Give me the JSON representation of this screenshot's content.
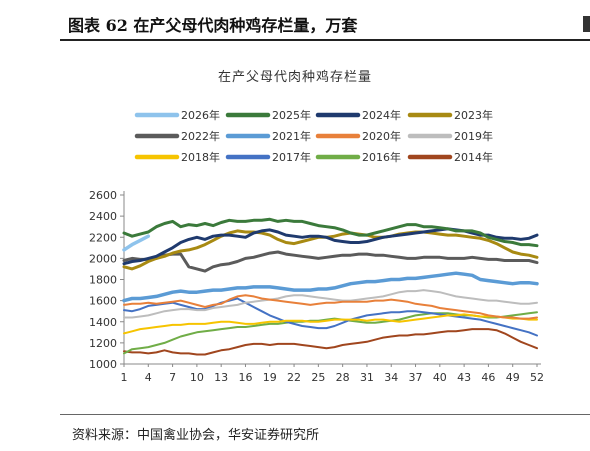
{
  "figure": {
    "title": "图表 62 在产父母代肉种鸡存栏量，万套",
    "source": "资料来源：中国禽业协会，华安证券研究所"
  },
  "chart_data": {
    "type": "line",
    "title": "在产父母代肉种鸡存栏量",
    "xlabel": "",
    "ylabel": "",
    "ylim": [
      1000,
      2600
    ],
    "yticks": [
      1000,
      1200,
      1400,
      1600,
      1800,
      2000,
      2200,
      2400,
      2600
    ],
    "xlim": [
      1,
      52
    ],
    "xticks": [
      1,
      4,
      7,
      10,
      13,
      16,
      19,
      22,
      25,
      28,
      31,
      34,
      37,
      40,
      43,
      46,
      49,
      52
    ],
    "grid": false,
    "legend": "top",
    "series": [
      {
        "name": "2026年",
        "color": "#8EC3EC",
        "width": 3.5,
        "x": [
          1,
          2,
          3,
          4
        ],
        "values": [
          2080,
          2130,
          2170,
          2210
        ]
      },
      {
        "name": "2025年",
        "color": "#3B7A3B",
        "width": 3,
        "x": [
          1,
          2,
          3,
          4,
          5,
          6,
          7,
          8,
          9,
          10,
          11,
          12,
          13,
          14,
          15,
          16,
          17,
          18,
          19,
          20,
          21,
          22,
          23,
          24,
          25,
          26,
          27,
          28,
          29,
          30,
          31,
          32,
          33,
          34,
          35,
          36,
          37,
          38,
          39,
          40,
          41,
          42,
          43,
          44,
          45,
          46,
          47,
          48,
          49,
          50,
          51,
          52
        ],
        "values": [
          2240,
          2210,
          2230,
          2250,
          2300,
          2330,
          2350,
          2300,
          2320,
          2310,
          2330,
          2310,
          2340,
          2360,
          2350,
          2350,
          2360,
          2360,
          2370,
          2350,
          2360,
          2350,
          2350,
          2330,
          2310,
          2300,
          2290,
          2270,
          2240,
          2220,
          2220,
          2240,
          2260,
          2280,
          2300,
          2320,
          2320,
          2300,
          2300,
          2290,
          2280,
          2260,
          2260,
          2260,
          2240,
          2200,
          2180,
          2160,
          2150,
          2130,
          2130,
          2120
        ]
      },
      {
        "name": "2024年",
        "color": "#1F3A6E",
        "width": 3,
        "x": [
          1,
          2,
          3,
          4,
          5,
          6,
          7,
          8,
          9,
          10,
          11,
          12,
          13,
          14,
          15,
          16,
          17,
          18,
          19,
          20,
          21,
          22,
          23,
          24,
          25,
          26,
          27,
          28,
          29,
          30,
          31,
          32,
          33,
          34,
          35,
          36,
          37,
          38,
          39,
          40,
          41,
          42,
          43,
          44,
          45,
          46,
          47,
          48,
          49,
          50,
          51,
          52
        ],
        "values": [
          1950,
          1970,
          1980,
          2000,
          2020,
          2060,
          2100,
          2150,
          2180,
          2200,
          2180,
          2210,
          2220,
          2220,
          2210,
          2200,
          2240,
          2260,
          2270,
          2250,
          2220,
          2210,
          2200,
          2210,
          2210,
          2200,
          2170,
          2160,
          2150,
          2150,
          2160,
          2180,
          2200,
          2210,
          2220,
          2230,
          2240,
          2250,
          2260,
          2270,
          2280,
          2270,
          2260,
          2240,
          2220,
          2220,
          2200,
          2190,
          2190,
          2180,
          2190,
          2220
        ]
      },
      {
        "name": "2023年",
        "color": "#A88A12",
        "width": 3,
        "x": [
          1,
          2,
          3,
          4,
          5,
          6,
          7,
          8,
          9,
          10,
          11,
          12,
          13,
          14,
          15,
          16,
          17,
          18,
          19,
          20,
          21,
          22,
          23,
          24,
          25,
          26,
          27,
          28,
          29,
          30,
          31,
          32,
          33,
          34,
          35,
          36,
          37,
          38,
          39,
          40,
          41,
          42,
          43,
          44,
          45,
          46,
          47,
          48,
          49,
          50,
          51,
          52
        ],
        "values": [
          1920,
          1900,
          1930,
          1970,
          2000,
          2020,
          2050,
          2070,
          2080,
          2100,
          2130,
          2170,
          2210,
          2240,
          2260,
          2250,
          2250,
          2240,
          2220,
          2180,
          2150,
          2140,
          2160,
          2180,
          2200,
          2200,
          2210,
          2230,
          2240,
          2230,
          2220,
          2200,
          2200,
          2210,
          2230,
          2240,
          2250,
          2250,
          2240,
          2230,
          2220,
          2220,
          2210,
          2200,
          2190,
          2170,
          2140,
          2100,
          2060,
          2040,
          2030,
          2010
        ]
      },
      {
        "name": "2022年",
        "color": "#5B5B5B",
        "width": 3,
        "x": [
          1,
          2,
          3,
          4,
          5,
          6,
          7,
          8,
          9,
          10,
          11,
          12,
          13,
          14,
          15,
          16,
          17,
          18,
          19,
          20,
          21,
          22,
          23,
          24,
          25,
          26,
          27,
          28,
          29,
          30,
          31,
          32,
          33,
          34,
          35,
          36,
          37,
          38,
          39,
          40,
          41,
          42,
          43,
          44,
          45,
          46,
          47,
          48,
          49,
          50,
          51,
          52
        ],
        "values": [
          1980,
          2000,
          1990,
          1990,
          2000,
          2030,
          2040,
          2040,
          1920,
          1900,
          1880,
          1920,
          1940,
          1950,
          1970,
          2000,
          2010,
          2030,
          2050,
          2060,
          2040,
          2030,
          2020,
          2010,
          2000,
          2010,
          2020,
          2030,
          2030,
          2040,
          2040,
          2030,
          2030,
          2020,
          2010,
          2000,
          2000,
          2010,
          2010,
          2010,
          2000,
          2000,
          2000,
          2010,
          2000,
          1990,
          1990,
          1980,
          1980,
          1980,
          1980,
          1960
        ]
      },
      {
        "name": "2021年",
        "color": "#5B9BD5",
        "width": 3.5,
        "x": [
          1,
          2,
          3,
          4,
          5,
          6,
          7,
          8,
          9,
          10,
          11,
          12,
          13,
          14,
          15,
          16,
          17,
          18,
          19,
          20,
          21,
          22,
          23,
          24,
          25,
          26,
          27,
          28,
          29,
          30,
          31,
          32,
          33,
          34,
          35,
          36,
          37,
          38,
          39,
          40,
          41,
          42,
          43,
          44,
          45,
          46,
          47,
          48,
          49,
          50,
          51,
          52
        ],
        "values": [
          1600,
          1620,
          1620,
          1630,
          1640,
          1660,
          1680,
          1690,
          1680,
          1680,
          1690,
          1700,
          1700,
          1710,
          1720,
          1720,
          1730,
          1730,
          1730,
          1720,
          1710,
          1700,
          1700,
          1700,
          1710,
          1710,
          1720,
          1740,
          1760,
          1770,
          1780,
          1780,
          1790,
          1800,
          1800,
          1810,
          1810,
          1820,
          1830,
          1840,
          1850,
          1860,
          1850,
          1840,
          1800,
          1790,
          1780,
          1770,
          1760,
          1770,
          1770,
          1760
        ]
      },
      {
        "name": "2020年",
        "color": "#E8803A",
        "width": 2,
        "x": [
          1,
          2,
          3,
          4,
          5,
          6,
          7,
          8,
          9,
          10,
          11,
          12,
          13,
          14,
          15,
          16,
          17,
          18,
          19,
          20,
          21,
          22,
          23,
          24,
          25,
          26,
          27,
          28,
          29,
          30,
          31,
          32,
          33,
          34,
          35,
          36,
          37,
          38,
          39,
          40,
          41,
          42,
          43,
          44,
          45,
          46,
          47,
          48,
          49,
          50,
          51,
          52
        ],
        "values": [
          1560,
          1570,
          1570,
          1580,
          1570,
          1580,
          1590,
          1600,
          1580,
          1560,
          1540,
          1560,
          1570,
          1610,
          1640,
          1650,
          1640,
          1620,
          1610,
          1600,
          1590,
          1580,
          1570,
          1560,
          1570,
          1580,
          1580,
          1590,
          1590,
          1590,
          1590,
          1600,
          1600,
          1610,
          1600,
          1590,
          1570,
          1560,
          1550,
          1530,
          1520,
          1510,
          1500,
          1490,
          1480,
          1460,
          1450,
          1440,
          1440,
          1430,
          1430,
          1440
        ]
      },
      {
        "name": "2019年",
        "color": "#BDBDBD",
        "width": 2,
        "x": [
          1,
          2,
          3,
          4,
          5,
          6,
          7,
          8,
          9,
          10,
          11,
          12,
          13,
          14,
          15,
          16,
          17,
          18,
          19,
          20,
          21,
          22,
          23,
          24,
          25,
          26,
          27,
          28,
          29,
          30,
          31,
          32,
          33,
          34,
          35,
          36,
          37,
          38,
          39,
          40,
          41,
          42,
          43,
          44,
          45,
          46,
          47,
          48,
          49,
          50,
          51,
          52
        ],
        "values": [
          1440,
          1440,
          1450,
          1460,
          1480,
          1500,
          1510,
          1520,
          1520,
          1510,
          1510,
          1530,
          1540,
          1550,
          1560,
          1580,
          1590,
          1600,
          1610,
          1620,
          1640,
          1650,
          1650,
          1640,
          1630,
          1620,
          1610,
          1600,
          1600,
          1610,
          1620,
          1630,
          1640,
          1660,
          1680,
          1690,
          1690,
          1700,
          1690,
          1680,
          1660,
          1640,
          1630,
          1620,
          1610,
          1600,
          1600,
          1590,
          1580,
          1570,
          1570,
          1580
        ]
      },
      {
        "name": "2018年",
        "color": "#F6C400",
        "width": 2,
        "x": [
          1,
          2,
          3,
          4,
          5,
          6,
          7,
          8,
          9,
          10,
          11,
          12,
          13,
          14,
          15,
          16,
          17,
          18,
          19,
          20,
          21,
          22,
          23,
          24,
          25,
          26,
          27,
          28,
          29,
          30,
          31,
          32,
          33,
          34,
          35,
          36,
          37,
          38,
          39,
          40,
          41,
          42,
          43,
          44,
          45,
          46,
          47,
          48,
          49,
          50,
          51,
          52
        ],
        "values": [
          1290,
          1310,
          1330,
          1340,
          1350,
          1360,
          1370,
          1370,
          1380,
          1380,
          1380,
          1390,
          1400,
          1400,
          1390,
          1380,
          1380,
          1390,
          1400,
          1400,
          1410,
          1410,
          1410,
          1400,
          1400,
          1410,
          1420,
          1420,
          1420,
          1420,
          1410,
          1420,
          1420,
          1410,
          1400,
          1410,
          1420,
          1430,
          1440,
          1450,
          1460,
          1460,
          1470,
          1460,
          1450,
          1450,
          1450,
          1440,
          1430,
          1430,
          1420,
          1420
        ]
      },
      {
        "name": "2017年",
        "color": "#4472C4",
        "width": 2,
        "x": [
          1,
          2,
          3,
          4,
          5,
          6,
          7,
          8,
          9,
          10,
          11,
          12,
          13,
          14,
          15,
          16,
          17,
          18,
          19,
          20,
          21,
          22,
          23,
          24,
          25,
          26,
          27,
          28,
          29,
          30,
          31,
          32,
          33,
          34,
          35,
          36,
          37,
          38,
          39,
          40,
          41,
          42,
          43,
          44,
          45,
          46,
          47,
          48,
          49,
          50,
          51,
          52
        ],
        "values": [
          1510,
          1500,
          1520,
          1550,
          1560,
          1570,
          1580,
          1560,
          1540,
          1520,
          1520,
          1550,
          1580,
          1600,
          1620,
          1580,
          1540,
          1500,
          1460,
          1430,
          1400,
          1380,
          1360,
          1350,
          1340,
          1340,
          1360,
          1390,
          1420,
          1440,
          1460,
          1470,
          1480,
          1490,
          1490,
          1500,
          1500,
          1490,
          1480,
          1470,
          1460,
          1450,
          1440,
          1430,
          1420,
          1400,
          1380,
          1360,
          1340,
          1320,
          1300,
          1270
        ]
      },
      {
        "name": "2016年",
        "color": "#70AD47",
        "width": 2,
        "x": [
          1,
          2,
          3,
          4,
          5,
          6,
          7,
          8,
          9,
          10,
          11,
          12,
          13,
          14,
          15,
          16,
          17,
          18,
          19,
          20,
          21,
          22,
          23,
          24,
          25,
          26,
          27,
          28,
          29,
          30,
          31,
          32,
          33,
          34,
          35,
          36,
          37,
          38,
          39,
          40,
          41,
          42,
          43,
          44,
          45,
          46,
          47,
          48,
          49,
          50,
          51,
          52
        ],
        "values": [
          1100,
          1140,
          1150,
          1160,
          1180,
          1200,
          1230,
          1260,
          1280,
          1300,
          1310,
          1320,
          1330,
          1340,
          1350,
          1350,
          1360,
          1370,
          1380,
          1380,
          1390,
          1400,
          1400,
          1410,
          1410,
          1420,
          1430,
          1420,
          1410,
          1400,
          1390,
          1390,
          1400,
          1410,
          1420,
          1440,
          1460,
          1470,
          1480,
          1480,
          1480,
          1470,
          1460,
          1460,
          1450,
          1440,
          1440,
          1450,
          1460,
          1470,
          1480,
          1490
        ]
      },
      {
        "name": "2014年",
        "color": "#A0461E",
        "width": 2,
        "x": [
          1,
          2,
          3,
          4,
          5,
          6,
          7,
          8,
          9,
          10,
          11,
          12,
          13,
          14,
          15,
          16,
          17,
          18,
          19,
          20,
          21,
          22,
          23,
          24,
          25,
          26,
          27,
          28,
          29,
          30,
          31,
          32,
          33,
          34,
          35,
          36,
          37,
          38,
          39,
          40,
          41,
          42,
          43,
          44,
          45,
          46,
          47,
          48,
          49,
          50,
          51,
          52
        ],
        "values": [
          1120,
          1110,
          1110,
          1100,
          1110,
          1130,
          1110,
          1100,
          1100,
          1090,
          1090,
          1110,
          1130,
          1140,
          1160,
          1180,
          1190,
          1190,
          1180,
          1190,
          1190,
          1190,
          1180,
          1170,
          1160,
          1150,
          1160,
          1180,
          1190,
          1200,
          1210,
          1230,
          1250,
          1260,
          1270,
          1270,
          1280,
          1280,
          1290,
          1300,
          1310,
          1310,
          1320,
          1330,
          1330,
          1330,
          1320,
          1290,
          1250,
          1210,
          1180,
          1150
        ]
      }
    ]
  }
}
